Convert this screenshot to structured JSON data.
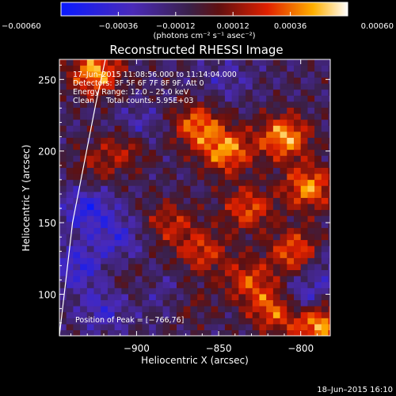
{
  "chart_data": {
    "type": "heatmap",
    "title": "Reconstructed RHESSI Image",
    "xlabel": "Heliocentric X (arcsec)",
    "ylabel": "Heliocentric Y (arcsec)",
    "xlim": [
      -947,
      -782
    ],
    "ylim": [
      71,
      264
    ],
    "xticks": [
      -900,
      -850,
      -800
    ],
    "xtick_labels": [
      "−900",
      "−850",
      "−800"
    ],
    "yticks": [
      100,
      150,
      200,
      250
    ],
    "ytick_labels": [
      "100",
      "150",
      "200",
      "250"
    ],
    "colorbar": {
      "range": [
        -0.0006,
        0.0006
      ],
      "ticks": [
        -0.0006,
        -0.00036,
        -0.00012,
        0.00012,
        0.00036,
        0.0006
      ],
      "tick_labels": [
        "−0.00060",
        "−0.00036",
        "−0.00012",
        "0.00012",
        "0.00036",
        "0.00060"
      ],
      "units": "(photons cm⁻² s⁻¹ asec⁻²)",
      "colormap": "blue-purple-red-yellow-white"
    },
    "annotations": [
      "17–Jun–2015 11:08:56.000 to 11:14:04.000",
      "Detectors: 3F 5F 6F 7F 8F 9F, Att 0",
      "Energy Range: 12.0 – 25.0 keV",
      "Clean     Total counts: 5.95E+03"
    ],
    "peak_label": "Position of Peak = [−766,76]",
    "peak_position": [
      -766,
      76
    ],
    "footer_timestamp": "18–Jun–2015 16:10",
    "limb_points": [
      [
        -947,
        71
      ],
      [
        -939,
        150
      ],
      [
        -925,
        232
      ],
      [
        -919,
        264
      ]
    ],
    "hot_spots": [
      {
        "x": -925,
        "y": 255,
        "w": 0.00055
      },
      {
        "x": -905,
        "y": 205,
        "w": 0.00035
      },
      {
        "x": -863,
        "y": 218,
        "w": 0.00045
      },
      {
        "x": -845,
        "y": 200,
        "w": 0.0005
      },
      {
        "x": -832,
        "y": 160,
        "w": 0.0004
      },
      {
        "x": -810,
        "y": 210,
        "w": 0.00055
      },
      {
        "x": -795,
        "y": 175,
        "w": 0.0005
      },
      {
        "x": -803,
        "y": 130,
        "w": 0.00045
      },
      {
        "x": -860,
        "y": 130,
        "w": 0.00035
      },
      {
        "x": -880,
        "y": 150,
        "w": 0.0003
      },
      {
        "x": -832,
        "y": 110,
        "w": 0.00035
      },
      {
        "x": -815,
        "y": 90,
        "w": 0.0005
      },
      {
        "x": -790,
        "y": 80,
        "w": 0.0006
      },
      {
        "x": -870,
        "y": 95,
        "w": 0.0002
      },
      {
        "x": -905,
        "y": 110,
        "w": 0.0001
      },
      {
        "x": -925,
        "y": 190,
        "w": 0.0002
      }
    ],
    "cold_spots": [
      {
        "x": -935,
        "y": 120,
        "w": -0.0003
      },
      {
        "x": -930,
        "y": 160,
        "w": -0.00035
      },
      {
        "x": -910,
        "y": 140,
        "w": -0.00025
      },
      {
        "x": -900,
        "y": 215,
        "w": -0.0003
      },
      {
        "x": -880,
        "y": 100,
        "w": -0.0002
      },
      {
        "x": -845,
        "y": 250,
        "w": -0.00015
      },
      {
        "x": -800,
        "y": 95,
        "w": -0.0004
      },
      {
        "x": -785,
        "y": 120,
        "w": -0.0002
      },
      {
        "x": -920,
        "y": 90,
        "w": -0.00025
      }
    ]
  }
}
